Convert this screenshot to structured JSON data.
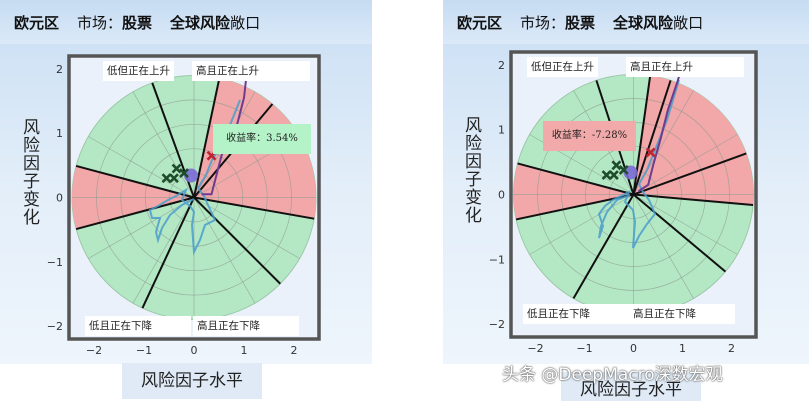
{
  "watermark": "头条 @DeepMacro深数宏观",
  "chart_data": [
    {
      "type": "polar-scatter",
      "header": {
        "region": "欧元区",
        "market_label": "市场：",
        "market": "股票",
        "exposure_prefix": "全球风险",
        "exposure_suffix": "敞口"
      },
      "xlabel": "风险因子水平",
      "ylabel": "风险因子变化",
      "xlim": [
        -2.5,
        2.5
      ],
      "ylim": [
        -2.2,
        2.2
      ],
      "xticks": [
        -2,
        -1,
        0,
        1,
        2
      ],
      "yticks": [
        -2,
        -1,
        0,
        1,
        2
      ],
      "quadrant_labels": [
        "低但正在上升",
        "高且正在上升",
        "低且正在下降",
        "高且正在下降"
      ],
      "return_label": "收益率：3.54%",
      "colors": {
        "green": "#b4e8c4",
        "red": "#f2a7a8",
        "line": "#4a9ccd",
        "purple": "#6d3c8f",
        "current": "#c0252f",
        "history": "#1e4d2b",
        "dot": "#7b6ad6"
      },
      "path": [
        [
          0.15,
          0.05
        ],
        [
          0.35,
          0.05
        ],
        [
          0.45,
          0.35
        ],
        [
          0.55,
          0.65
        ],
        [
          0.65,
          0.85
        ],
        [
          0.85,
          1.1
        ],
        [
          1.0,
          1.55
        ],
        [
          1.05,
          1.9
        ]
      ],
      "history_points": [
        [
          -0.4,
          0.3
        ],
        [
          -0.55,
          0.3
        ],
        [
          -0.35,
          0.45
        ],
        [
          -0.2,
          0.38
        ]
      ],
      "current_point": [
        0.35,
        0.65
      ]
    },
    {
      "type": "polar-scatter",
      "header": {
        "region": "欧元区",
        "market_label": "市场：",
        "market": "股票",
        "exposure_prefix": "全球风险",
        "exposure_suffix": "敞口"
      },
      "xlabel": "风险因子水平",
      "ylabel": "风险因子变化",
      "xlim": [
        -2.5,
        2.5
      ],
      "ylim": [
        -2.2,
        2.2
      ],
      "xticks": [
        -2,
        -1,
        0,
        1,
        2
      ],
      "yticks": [
        -2,
        -1,
        0,
        1,
        2
      ],
      "quadrant_labels": [
        "低但正在上升",
        "高且正在上升",
        "低且正在下降",
        "高且正在下降"
      ],
      "return_label": "收益率：-7.28%",
      "colors": {
        "green": "#b4e8c4",
        "red": "#f2a7a8",
        "line": "#4a9ccd",
        "purple": "#6d3c8f",
        "current": "#c0252f",
        "history": "#1e4d2b",
        "dot": "#7b6ad6"
      },
      "path": [
        [
          0.1,
          0.05
        ],
        [
          0.3,
          0.15
        ],
        [
          0.4,
          0.45
        ],
        [
          0.55,
          0.85
        ],
        [
          0.7,
          1.3
        ],
        [
          0.9,
          1.75
        ],
        [
          1.0,
          2.0
        ]
      ],
      "history_points": [
        [
          -0.4,
          0.3
        ],
        [
          -0.55,
          0.3
        ],
        [
          -0.35,
          0.45
        ],
        [
          -0.2,
          0.38
        ]
      ],
      "current_point": [
        0.35,
        0.65
      ]
    }
  ]
}
